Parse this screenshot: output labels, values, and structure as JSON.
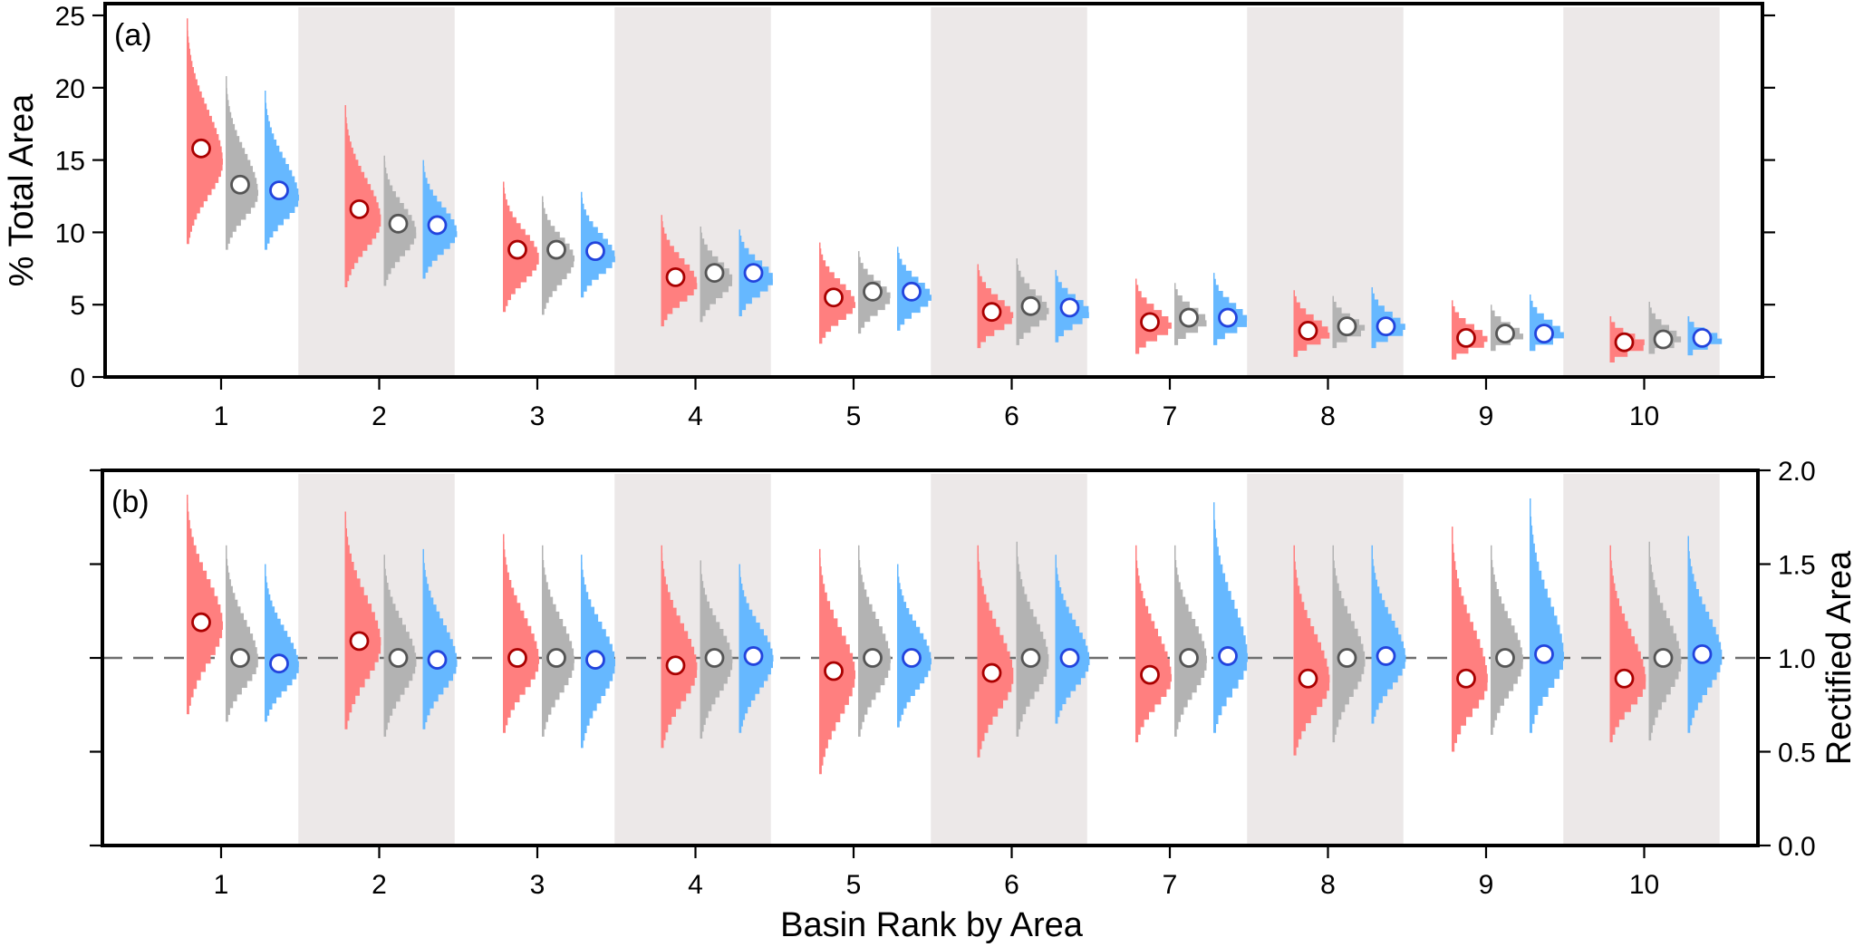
{
  "colors": {
    "model_a_fill": "#ff7f7f",
    "model_a_marker": "#aa0000",
    "model_b_fill": "#b3b3b3",
    "model_b_marker": "#555555",
    "model_c_fill": "#66b8ff",
    "model_c_marker": "#2244dd",
    "band": "#ece8e8",
    "reference_line": "#6e6e6e"
  },
  "chart_data": [
    {
      "panel_label": "(a)",
      "type": "histogram-violin",
      "xlabel": "",
      "ylabel": "% Total Area",
      "ylabel_side": "left",
      "ylim": [
        0,
        25
      ],
      "yticks": [
        0,
        5,
        10,
        15,
        20,
        25
      ],
      "ytick_labels": [
        "0",
        "5",
        "10",
        "15",
        "20",
        "25"
      ],
      "categories": [
        "1",
        "2",
        "3",
        "4",
        "5",
        "6",
        "7",
        "8",
        "9",
        "10"
      ],
      "alternating_bands": true,
      "grid": false,
      "reference_line": null,
      "series": [
        {
          "name": "red",
          "marker_values": [
            15.8,
            11.6,
            8.8,
            6.9,
            5.5,
            4.5,
            3.8,
            3.2,
            2.7,
            2.4
          ],
          "min": [
            9.2,
            6.2,
            4.5,
            3.5,
            2.3,
            2.0,
            1.6,
            1.4,
            1.2,
            1.0
          ],
          "max": [
            24.8,
            18.8,
            13.5,
            11.2,
            9.3,
            7.8,
            6.8,
            6.0,
            5.3,
            4.2
          ]
        },
        {
          "name": "gray",
          "marker_values": [
            13.3,
            10.6,
            8.8,
            7.2,
            5.9,
            4.9,
            4.1,
            3.5,
            3.0,
            2.6
          ],
          "min": [
            8.8,
            6.3,
            4.3,
            3.8,
            3.0,
            2.2,
            2.2,
            2.0,
            1.8,
            1.6
          ],
          "max": [
            20.8,
            15.3,
            12.5,
            10.4,
            8.7,
            8.2,
            6.5,
            5.6,
            5.0,
            5.2
          ]
        },
        {
          "name": "blue",
          "marker_values": [
            12.9,
            10.5,
            8.7,
            7.2,
            5.9,
            4.8,
            4.1,
            3.5,
            3.0,
            2.7
          ],
          "min": [
            8.8,
            6.8,
            5.5,
            4.2,
            3.2,
            2.4,
            2.2,
            2.0,
            1.8,
            1.5
          ],
          "max": [
            19.8,
            15.0,
            12.8,
            10.2,
            9.0,
            7.4,
            7.2,
            6.2,
            5.7,
            4.2
          ]
        }
      ]
    },
    {
      "panel_label": "(b)",
      "type": "histogram-violin",
      "xlabel": "Basin Rank by Area",
      "ylabel": "Rectified Area",
      "ylabel_side": "right",
      "ylim": [
        0.0,
        2.0
      ],
      "yticks": [
        0.0,
        0.5,
        1.0,
        1.5,
        2.0
      ],
      "ytick_labels": [
        "0.0",
        "0.5",
        "1.0",
        "1.5",
        "2.0"
      ],
      "categories": [
        "1",
        "2",
        "3",
        "4",
        "5",
        "6",
        "7",
        "8",
        "9",
        "10"
      ],
      "alternating_bands": true,
      "grid": false,
      "reference_line": 1.0,
      "series": [
        {
          "name": "red",
          "marker_values": [
            1.19,
            1.09,
            1.0,
            0.96,
            0.93,
            0.92,
            0.91,
            0.89,
            0.89,
            0.89
          ],
          "min": [
            0.7,
            0.62,
            0.6,
            0.52,
            0.38,
            0.47,
            0.55,
            0.48,
            0.5,
            0.55
          ],
          "max": [
            1.87,
            1.78,
            1.66,
            1.6,
            1.58,
            1.6,
            1.6,
            1.6,
            1.7,
            1.6
          ]
        },
        {
          "name": "gray",
          "marker_values": [
            1.0,
            1.0,
            1.0,
            1.0,
            1.0,
            1.0,
            1.0,
            1.0,
            1.0,
            1.0
          ],
          "min": [
            0.66,
            0.58,
            0.58,
            0.57,
            0.58,
            0.58,
            0.58,
            0.55,
            0.59,
            0.56
          ],
          "max": [
            1.6,
            1.55,
            1.6,
            1.52,
            1.6,
            1.62,
            1.6,
            1.6,
            1.6,
            1.62
          ]
        },
        {
          "name": "blue",
          "marker_values": [
            0.97,
            0.99,
            0.99,
            1.01,
            1.0,
            1.0,
            1.01,
            1.01,
            1.02,
            1.02
          ],
          "min": [
            0.66,
            0.62,
            0.52,
            0.6,
            0.63,
            0.65,
            0.6,
            0.65,
            0.6,
            0.6
          ],
          "max": [
            1.5,
            1.58,
            1.55,
            1.5,
            1.5,
            1.55,
            1.83,
            1.6,
            1.85,
            1.65
          ]
        }
      ]
    }
  ]
}
